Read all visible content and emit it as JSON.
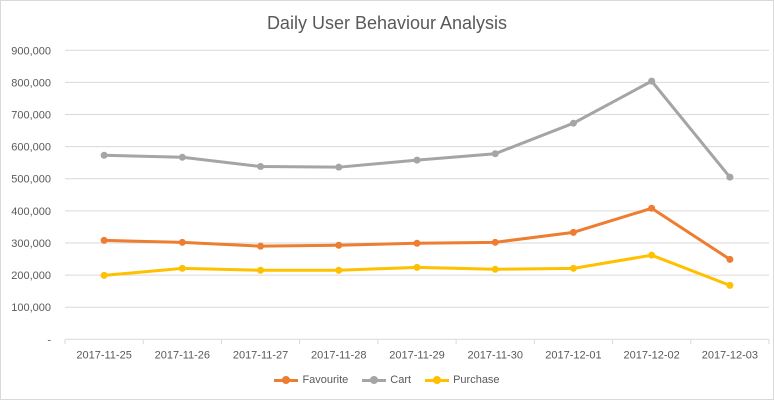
{
  "chart_data": {
    "type": "line",
    "title": "Daily User Behaviour Analysis",
    "xlabel": "",
    "ylabel": "",
    "categories": [
      "2017-11-25",
      "2017-11-26",
      "2017-11-27",
      "2017-11-28",
      "2017-11-29",
      "2017-11-30",
      "2017-12-01",
      "2017-12-02",
      "2017-12-03"
    ],
    "ylim": [
      0,
      900000
    ],
    "yticks": [
      0,
      100000,
      200000,
      300000,
      400000,
      500000,
      600000,
      700000,
      800000,
      900000
    ],
    "ytick_labels": [
      "-",
      "100,000",
      "200,000",
      "300,000",
      "400,000",
      "500,000",
      "600,000",
      "700,000",
      "800,000",
      "900,000"
    ],
    "grid": true,
    "legend_position": "bottom",
    "series": [
      {
        "name": "Favourite",
        "color": "#ED7D31",
        "values": [
          308000,
          302000,
          290000,
          293000,
          299000,
          302000,
          333000,
          408000,
          249000
        ]
      },
      {
        "name": "Cart",
        "color": "#A5A5A5",
        "values": [
          573000,
          567000,
          538000,
          536000,
          558000,
          578000,
          673000,
          804000,
          505000
        ]
      },
      {
        "name": "Purchase",
        "color": "#FFC000",
        "values": [
          199000,
          221000,
          215000,
          215000,
          224000,
          218000,
          221000,
          262000,
          168000
        ]
      }
    ]
  }
}
